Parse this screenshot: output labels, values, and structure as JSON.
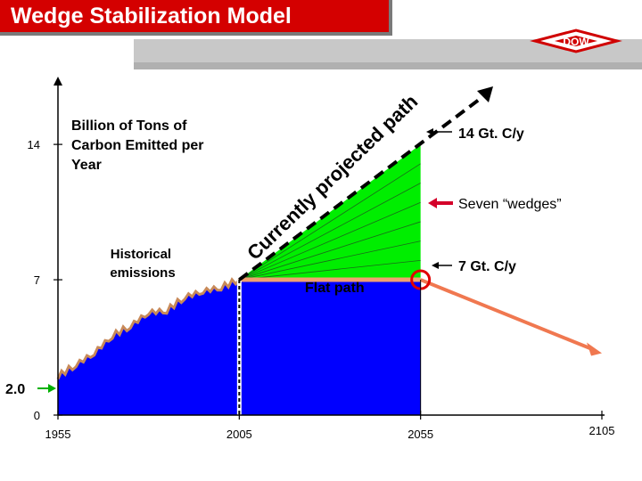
{
  "slide": {
    "title": "Wedge Stabilization Model",
    "logo_text": "DOW"
  },
  "colors": {
    "title_bg": "#d40000",
    "historical_fill": "#0000ff",
    "historical_line": "#c88a5a",
    "wedge_fill": "#00ee00",
    "flat_path_line": "#f0a070",
    "decline_arrow": "#f07850",
    "projected_dash": "#000000",
    "wedges_arrow": "#d4002a",
    "marker_circle": "#e00000"
  },
  "chart_data": {
    "type": "area",
    "ylabel": "Billion of Tons of Carbon Emitted per Year",
    "x_ticks": [
      "1955",
      "2005",
      "2055",
      "2105"
    ],
    "y_ticks": [
      "0",
      "7",
      "14"
    ],
    "xlim": [
      1955,
      2105
    ],
    "ylim": [
      0,
      17
    ],
    "historical_emissions": {
      "label": "Historical emissions",
      "x": [
        1955,
        1960,
        1965,
        1970,
        1975,
        1980,
        1985,
        1990,
        1995,
        2000,
        2005
      ],
      "y": [
        2.0,
        2.6,
        3.2,
        4.1,
        4.6,
        5.3,
        5.4,
        6.1,
        6.4,
        6.6,
        7.0
      ]
    },
    "currently_projected_path": {
      "label": "Currently projected path",
      "x": [
        2005,
        2055,
        2075
      ],
      "y": [
        7.0,
        14.0,
        17.0
      ]
    },
    "flat_path": {
      "label": "Flat path",
      "x": [
        2005,
        2055
      ],
      "y": [
        7.0,
        7.0
      ]
    },
    "decline_path": {
      "x": [
        2055,
        2105
      ],
      "y": [
        7.0,
        3.2
      ]
    },
    "wedge_count": 7,
    "annotations": {
      "upper_value": "14 Gt. C/y",
      "wedges": "Seven “wedges”",
      "lower_value": "7 Gt. C/y",
      "start_value": "2.0"
    }
  }
}
